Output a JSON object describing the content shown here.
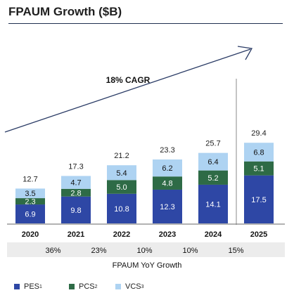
{
  "title": "FPAUM Growth ($B)",
  "annotation": "18% CAGR",
  "growth_label": "FPAUM YoY Growth",
  "growth_rates": [
    "36%",
    "23%",
    "10%",
    "10%",
    "15%"
  ],
  "legend": [
    {
      "label": "PES",
      "sup": "1",
      "color": "#2e47a5"
    },
    {
      "label": "PCS",
      "sup": "2",
      "color": "#2e6b46"
    },
    {
      "label": "VCS",
      "sup": "3",
      "color": "#aed3f2"
    }
  ],
  "chart_data": {
    "type": "bar",
    "stacked": true,
    "categories": [
      "2020",
      "2021",
      "2022",
      "2023",
      "2024",
      "2025"
    ],
    "series": [
      {
        "name": "PES",
        "color": "#2e47a5",
        "values": [
          6.9,
          9.8,
          10.8,
          12.3,
          14.1,
          17.5
        ]
      },
      {
        "name": "PCS",
        "color": "#2e6b46",
        "values": [
          2.3,
          2.8,
          5.0,
          4.8,
          5.2,
          5.1
        ]
      },
      {
        "name": "VCS",
        "color": "#aed3f2",
        "values": [
          3.5,
          4.7,
          5.4,
          6.2,
          6.4,
          6.8
        ]
      }
    ],
    "totals": [
      "12.7",
      "17.3",
      "21.2",
      "23.3",
      "25.7",
      "29.4"
    ],
    "ylim": [
      0,
      30
    ],
    "grid": false
  }
}
